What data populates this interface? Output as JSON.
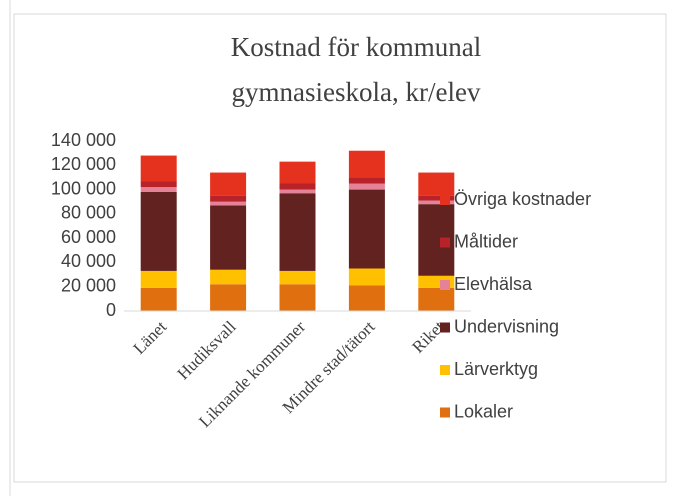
{
  "chart_data": {
    "type": "stacked_bar",
    "title": [
      "Kostnad för kommunal",
      "gymnasieskola, kr/elev"
    ],
    "categories": [
      "Länet",
      "Hudiksvall",
      "Liknande kommuner",
      "Mindre stad/tätort",
      "Riket"
    ],
    "series": [
      {
        "name": "Lokaler",
        "color": "#e0700f",
        "values": [
          19000,
          22000,
          22000,
          21000,
          19000
        ]
      },
      {
        "name": "Lärverktyg",
        "color": "#ffc000",
        "values": [
          14000,
          12000,
          11000,
          14000,
          10000
        ]
      },
      {
        "name": "Undervisning",
        "color": "#622220",
        "values": [
          65000,
          53000,
          64000,
          65000,
          59000
        ]
      },
      {
        "name": "Elevhälsa",
        "color": "#e58297",
        "values": [
          4000,
          3000,
          3000,
          5000,
          3000
        ]
      },
      {
        "name": "Måltider",
        "color": "#b8232a",
        "values": [
          5000,
          5000,
          5000,
          5000,
          4000
        ]
      },
      {
        "name": "Övriga kostnader",
        "color": "#e5321e",
        "values": [
          21000,
          19000,
          18000,
          22000,
          19000
        ]
      }
    ],
    "ylim": [
      0,
      140000
    ],
    "yticks": [
      0,
      {
        "value": 20000,
        "label": "20 000"
      },
      {
        "value": 40000,
        "label": "40 000"
      },
      {
        "value": 60000,
        "label": "60 000"
      },
      {
        "value": 80000,
        "label": "80 000"
      },
      {
        "value": 100000,
        "label": "100 000"
      },
      {
        "value": 120000,
        "label": "120 000"
      },
      {
        "value": 140000,
        "label": "140 000"
      }
    ],
    "grid": false,
    "legend": "right"
  }
}
